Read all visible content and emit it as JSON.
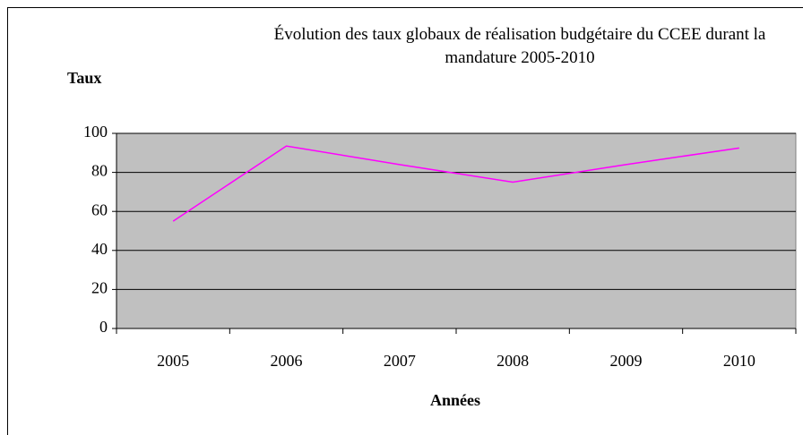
{
  "chart_data": {
    "type": "line",
    "title": "Évolution des taux globaux de réalisation budgétaire du CCEE durant la mandature 2005-2010",
    "y_label": "Taux",
    "x_label": "Années",
    "categories": [
      "2005",
      "2006",
      "2007",
      "2008",
      "2009",
      "2010"
    ],
    "values": [
      55,
      93.5,
      84,
      75,
      84,
      92.5
    ],
    "color": "#ff00ff",
    "ylim": [
      0,
      100
    ],
    "yticks": [
      0,
      20,
      40,
      60,
      80,
      100
    ],
    "grid": true
  }
}
